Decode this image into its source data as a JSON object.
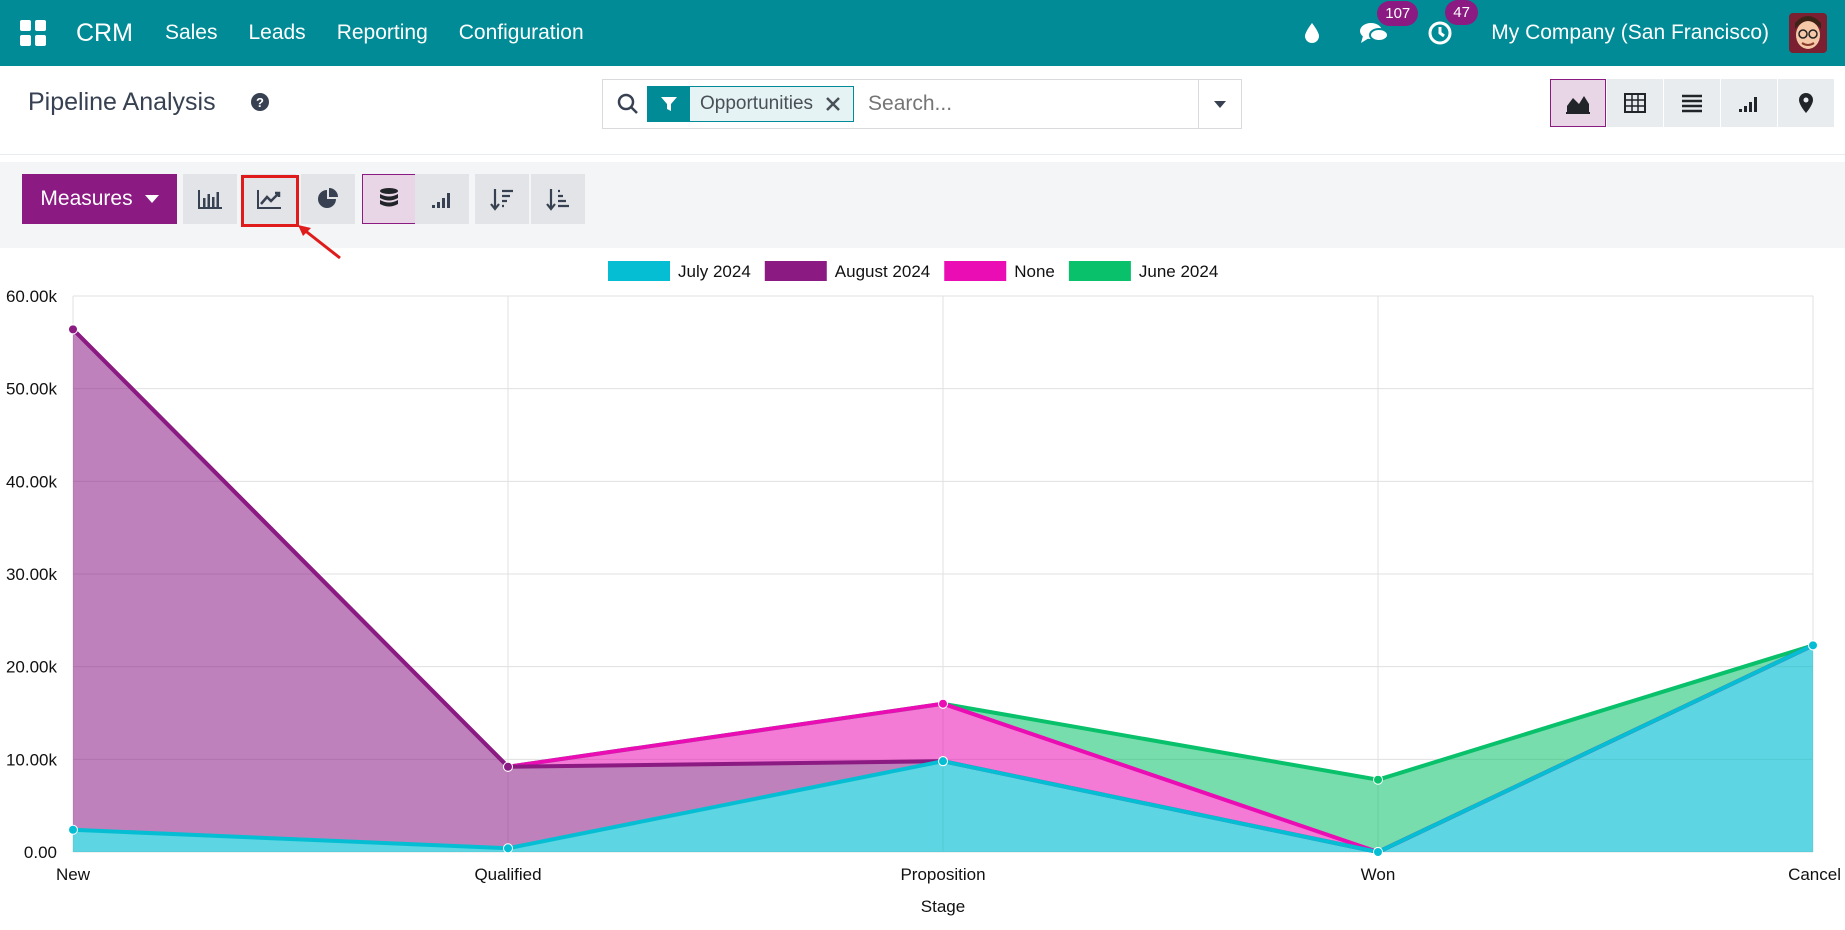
{
  "navbar": {
    "brand": "CRM",
    "menu": [
      "Sales",
      "Leads",
      "Reporting",
      "Configuration"
    ],
    "messages_count": "107",
    "activities_count": "47",
    "company": "My Company (San Francisco)",
    "icons": [
      "apps-icon",
      "drop-icon",
      "chat-icon",
      "clock-icon",
      "avatar"
    ]
  },
  "control_panel": {
    "title": "Pipeline Analysis",
    "facet_label": "Opportunities",
    "search_placeholder": "Search...",
    "views": [
      "graph",
      "pivot",
      "list",
      "cohort",
      "map"
    ],
    "active_view": "graph"
  },
  "graph_toolbar": {
    "measures_label": "Measures",
    "modes": [
      "bar",
      "line",
      "pie"
    ],
    "active_mode": "line",
    "stacked": true,
    "sort_options": [
      "descending",
      "ascending"
    ]
  },
  "colors": {
    "navbar": "#018b96",
    "primary": "#8b1a83",
    "july": "#06bed3",
    "august": "#8b1a83",
    "none": "#ea0db3",
    "june": "#08c16a",
    "highlight": "#e01b1b"
  },
  "chart_data": {
    "type": "area",
    "stacked": true,
    "categories": [
      "New",
      "Qualified",
      "Proposition",
      "Won",
      "Cancel"
    ],
    "xlabel": "Stage",
    "ylabel": "",
    "ylim": [
      0,
      60000
    ],
    "yticks": [
      "0.00",
      "10.00k",
      "20.00k",
      "30.00k",
      "40.00k",
      "50.00k",
      "60.00k"
    ],
    "grid": true,
    "legend_position": "top",
    "series": [
      {
        "name": "July 2024",
        "values": [
          2400,
          400,
          9800,
          0,
          22300
        ]
      },
      {
        "name": "August 2024",
        "values": [
          54000,
          8800,
          0,
          0,
          0
        ]
      },
      {
        "name": "None",
        "values": [
          0,
          0,
          6200,
          0,
          0
        ]
      },
      {
        "name": "June 2024",
        "values": [
          0,
          0,
          0,
          7800,
          0
        ]
      }
    ]
  }
}
